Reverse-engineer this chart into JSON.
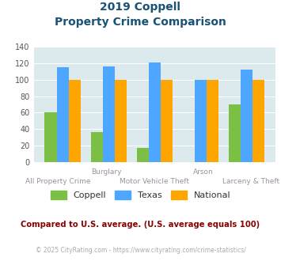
{
  "title_line1": "2019 Coppell",
  "title_line2": "Property Crime Comparison",
  "x_label_top": [
    "",
    "Burglary",
    "",
    "Arson",
    ""
  ],
  "x_label_bottom": [
    "All Property Crime",
    "",
    "Motor Vehicle Theft",
    "",
    "Larceny & Theft"
  ],
  "coppell": [
    60,
    36,
    17,
    0,
    70
  ],
  "texas": [
    115,
    116,
    121,
    100,
    112
  ],
  "national": [
    100,
    100,
    100,
    100,
    100
  ],
  "color_coppell": "#7BBF44",
  "color_texas": "#4DA6FF",
  "color_national": "#FFA500",
  "ylim": [
    0,
    140
  ],
  "yticks": [
    0,
    20,
    40,
    60,
    80,
    100,
    120,
    140
  ],
  "legend_labels": [
    "Coppell",
    "Texas",
    "National"
  ],
  "footnote1": "Compared to U.S. average. (U.S. average equals 100)",
  "footnote2": "© 2025 CityRating.com - https://www.cityrating.com/crime-statistics/",
  "bg_color": "#dce9ed",
  "title_color": "#1a5276",
  "footnote1_color": "#8B0000",
  "footnote2_color": "#aaaaaa"
}
